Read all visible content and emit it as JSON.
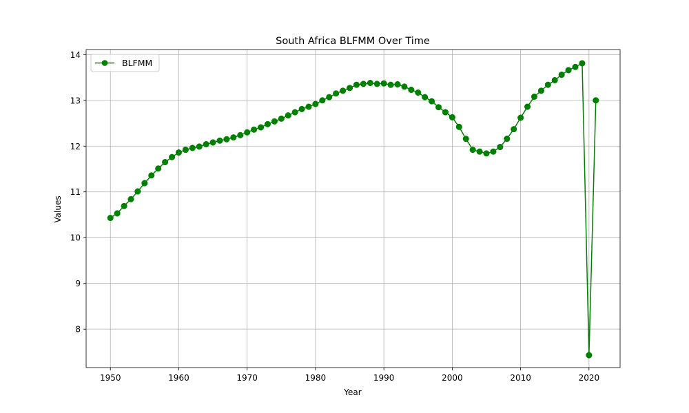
{
  "chart_data": {
    "type": "line",
    "title": "South Africa BLFMM Over Time",
    "xlabel": "Year",
    "ylabel": "Values",
    "xlim": [
      1946.45,
      2024.55
    ],
    "ylim": [
      7.16,
      14.11
    ],
    "xticks": [
      1950,
      1960,
      1970,
      1980,
      1990,
      2000,
      2010,
      2020
    ],
    "yticks": [
      8,
      9,
      10,
      11,
      12,
      13,
      14
    ],
    "grid": true,
    "legend_position": "top-left",
    "series": [
      {
        "name": "BLFMM",
        "color": "#008000",
        "marker": "circle",
        "x": [
          1950,
          1951,
          1952,
          1953,
          1954,
          1955,
          1956,
          1957,
          1958,
          1959,
          1960,
          1961,
          1962,
          1963,
          1964,
          1965,
          1966,
          1967,
          1968,
          1969,
          1970,
          1971,
          1972,
          1973,
          1974,
          1975,
          1976,
          1977,
          1978,
          1979,
          1980,
          1981,
          1982,
          1983,
          1984,
          1985,
          1986,
          1987,
          1988,
          1989,
          1990,
          1991,
          1992,
          1993,
          1994,
          1995,
          1996,
          1997,
          1998,
          1999,
          2000,
          2001,
          2002,
          2003,
          2004,
          2005,
          2006,
          2007,
          2008,
          2009,
          2010,
          2011,
          2012,
          2013,
          2014,
          2015,
          2016,
          2017,
          2018,
          2019,
          2020,
          2021
        ],
        "values": [
          10.43,
          10.53,
          10.69,
          10.84,
          11.01,
          11.19,
          11.36,
          11.51,
          11.65,
          11.76,
          11.86,
          11.92,
          11.96,
          11.99,
          12.04,
          12.08,
          12.12,
          12.15,
          12.19,
          12.24,
          12.3,
          12.36,
          12.41,
          12.48,
          12.54,
          12.6,
          12.67,
          12.74,
          12.81,
          12.86,
          12.92,
          13.0,
          13.07,
          13.15,
          13.21,
          13.27,
          13.34,
          13.36,
          13.38,
          13.36,
          13.37,
          13.34,
          13.35,
          13.3,
          13.23,
          13.17,
          13.07,
          12.98,
          12.85,
          12.74,
          12.63,
          12.42,
          12.16,
          11.92,
          11.88,
          11.84,
          11.88,
          11.98,
          12.16,
          12.37,
          12.62,
          12.86,
          13.08,
          13.21,
          13.34,
          13.44,
          13.56,
          13.66,
          13.73,
          13.81,
          7.43,
          13.0
        ]
      }
    ]
  }
}
